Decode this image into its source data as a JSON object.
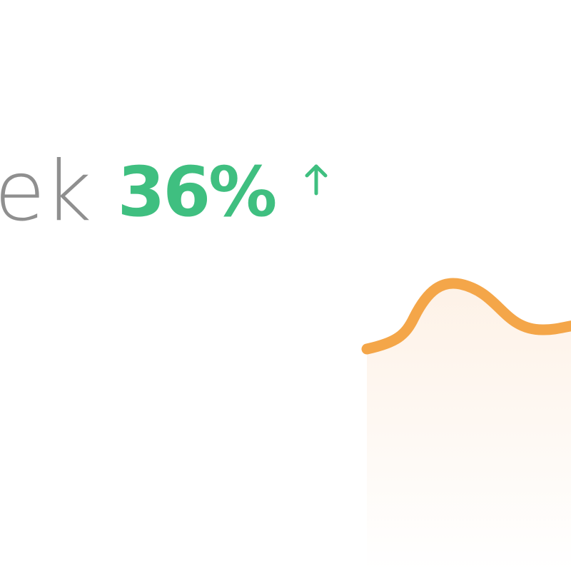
{
  "stat": {
    "label_fragment": "ek",
    "change_value": "36%",
    "trend_icon": "arrow-up-icon",
    "trend_direction": "up"
  },
  "colors": {
    "label_text": "#8f8f8f",
    "positive_change": "#3fbf80",
    "sparkline_stroke": "#f4a649",
    "sparkline_fill": "#fdf0e4",
    "background": "#ffffff"
  },
  "sparkline": {
    "icon": "sparkline-chart",
    "trend": "wave"
  }
}
